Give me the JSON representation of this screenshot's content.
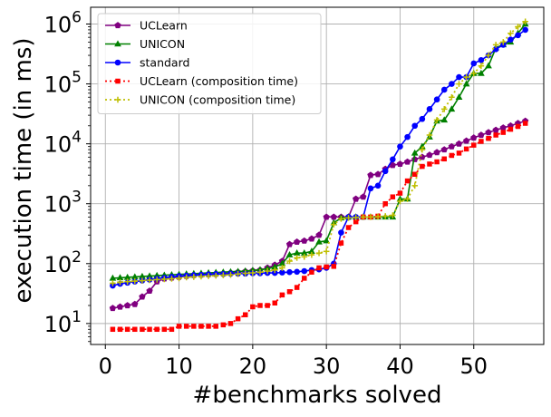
{
  "chart_data": {
    "type": "line",
    "xlabel": "#benchmarks solved",
    "ylabel": "execution time (in ms)",
    "xlim": [
      -2,
      59.5
    ],
    "ylim_log10": [
      0.65,
      6.28
    ],
    "y_scale": "log",
    "grid": true,
    "legend_position": "upper-left",
    "x_ticks": [
      0,
      10,
      20,
      30,
      40,
      50
    ],
    "x_tick_labels": [
      "0",
      "10",
      "20",
      "30",
      "40",
      "50"
    ],
    "y_tick_exponents": [
      1,
      2,
      3,
      4,
      5,
      6
    ],
    "y_tick_base": "10",
    "series": [
      {
        "name": "UCLearn",
        "color": "#800080",
        "line": "solid",
        "marker": "pentagon",
        "x": [
          1,
          2,
          3,
          4,
          5,
          6,
          7,
          8,
          9,
          10,
          11,
          12,
          13,
          14,
          15,
          16,
          17,
          18,
          19,
          20,
          21,
          22,
          23,
          24,
          25,
          26,
          27,
          28,
          29,
          30,
          31,
          32,
          33,
          34,
          35,
          36,
          37,
          38,
          39,
          40,
          41,
          42,
          43,
          44,
          45,
          46,
          47,
          48,
          49,
          50,
          51,
          52,
          53,
          54,
          55,
          56,
          57
        ],
        "y": [
          18,
          19,
          20,
          21,
          28,
          35,
          50,
          56,
          58,
          60,
          62,
          64,
          65,
          66,
          67,
          68,
          70,
          72,
          74,
          76,
          78,
          85,
          95,
          110,
          210,
          230,
          240,
          260,
          300,
          600,
          600,
          600,
          600,
          1200,
          1300,
          3000,
          3100,
          3800,
          4400,
          4600,
          5000,
          5500,
          6000,
          6500,
          7200,
          8000,
          9000,
          10000,
          11200,
          12600,
          14000,
          15500,
          17000,
          18500,
          20000,
          22000,
          24000
        ]
      },
      {
        "name": "UNICON",
        "color": "#008000",
        "line": "solid",
        "marker": "triangle",
        "x": [
          1,
          2,
          3,
          4,
          5,
          6,
          7,
          8,
          9,
          10,
          11,
          12,
          13,
          14,
          15,
          16,
          17,
          18,
          19,
          20,
          21,
          22,
          23,
          24,
          25,
          26,
          27,
          28,
          29,
          30,
          31,
          32,
          33,
          34,
          35,
          36,
          37,
          38,
          39,
          40,
          41,
          42,
          43,
          44,
          45,
          46,
          47,
          48,
          49,
          50,
          51,
          52,
          53,
          54,
          55,
          56,
          57
        ],
        "y": [
          57,
          58,
          59,
          60,
          61,
          62,
          63,
          64,
          65,
          66,
          67,
          68,
          69,
          70,
          71,
          72,
          73,
          74,
          75,
          77,
          79,
          82,
          88,
          100,
          140,
          150,
          150,
          160,
          230,
          240,
          480,
          580,
          600,
          600,
          600,
          600,
          600,
          600,
          600,
          1200,
          1200,
          7000,
          9000,
          13000,
          24000,
          25000,
          38000,
          60000,
          100000,
          150000,
          150000,
          200000,
          400000,
          450000,
          500000,
          700000,
          1000000
        ]
      },
      {
        "name": "standard",
        "color": "#0000ff",
        "line": "solid",
        "marker": "circle",
        "x": [
          1,
          2,
          3,
          4,
          5,
          6,
          7,
          8,
          9,
          10,
          11,
          12,
          13,
          14,
          15,
          16,
          17,
          18,
          19,
          20,
          21,
          22,
          23,
          24,
          25,
          26,
          27,
          28,
          29,
          30,
          31,
          32,
          33,
          34,
          35,
          36,
          37,
          38,
          39,
          40,
          41,
          42,
          43,
          44,
          45,
          46,
          47,
          48,
          49,
          50,
          51,
          52,
          53,
          54,
          55,
          56,
          57
        ],
        "y": [
          43,
          46,
          48,
          50,
          52,
          54,
          56,
          58,
          60,
          62,
          63,
          64,
          65,
          66,
          67,
          67,
          68,
          68,
          68,
          69,
          69,
          70,
          70,
          71,
          72,
          73,
          75,
          78,
          80,
          85,
          100,
          330,
          600,
          600,
          600,
          1800,
          2000,
          3500,
          5500,
          9000,
          13000,
          20000,
          26000,
          38000,
          55000,
          80000,
          100000,
          130000,
          130000,
          220000,
          250000,
          300000,
          380000,
          450000,
          550000,
          650000,
          800000
        ]
      },
      {
        "name": "UCLearn (composition time)",
        "color": "#ff0000",
        "line": "dotted",
        "marker": "square",
        "x": [
          1,
          2,
          3,
          4,
          5,
          6,
          7,
          8,
          9,
          10,
          11,
          12,
          13,
          14,
          15,
          16,
          17,
          18,
          19,
          20,
          21,
          22,
          23,
          24,
          25,
          26,
          27,
          28,
          29,
          30,
          31,
          32,
          33,
          34,
          35,
          36,
          37,
          38,
          39,
          40,
          41,
          42,
          43,
          44,
          45,
          46,
          47,
          48,
          49,
          50,
          51,
          52,
          53,
          54,
          55,
          56,
          57
        ],
        "y": [
          8,
          8,
          8,
          8,
          8,
          8,
          8,
          8,
          8,
          9,
          9,
          9,
          9,
          9,
          9,
          9.5,
          10,
          12,
          14,
          19,
          20,
          20,
          22,
          30,
          34,
          40,
          57,
          72,
          85,
          88,
          90,
          220,
          400,
          500,
          600,
          600,
          620,
          1000,
          1300,
          1500,
          2400,
          3100,
          4200,
          4600,
          5000,
          5600,
          6400,
          7000,
          8200,
          9500,
          11000,
          12300,
          14000,
          15500,
          17500,
          19500,
          22000
        ]
      },
      {
        "name": "UNICON (composition time)",
        "color": "#bfbf00",
        "line": "dotted",
        "marker": "plus",
        "x": [
          1,
          2,
          3,
          4,
          5,
          6,
          7,
          8,
          9,
          10,
          11,
          12,
          13,
          14,
          15,
          16,
          17,
          18,
          19,
          20,
          21,
          22,
          23,
          24,
          25,
          26,
          27,
          28,
          29,
          30,
          31,
          32,
          33,
          34,
          35,
          36,
          37,
          38,
          39,
          40,
          41,
          42,
          43,
          44,
          45,
          46,
          47,
          48,
          49,
          50,
          51,
          52,
          53,
          54,
          55,
          56,
          57
        ],
        "y": [
          47,
          49,
          50,
          51,
          52,
          53,
          54,
          55,
          56,
          57,
          59,
          60,
          61,
          62,
          63,
          64,
          65,
          67,
          69,
          70,
          72,
          75,
          78,
          85,
          110,
          125,
          130,
          140,
          150,
          160,
          450,
          560,
          580,
          590,
          600,
          600,
          610,
          620,
          640,
          1100,
          1200,
          2000,
          8000,
          14000,
          25000,
          38000,
          60000,
          100000,
          130000,
          150000,
          200000,
          300000,
          450000,
          500000,
          700000,
          900000,
          1100000
        ]
      }
    ]
  }
}
